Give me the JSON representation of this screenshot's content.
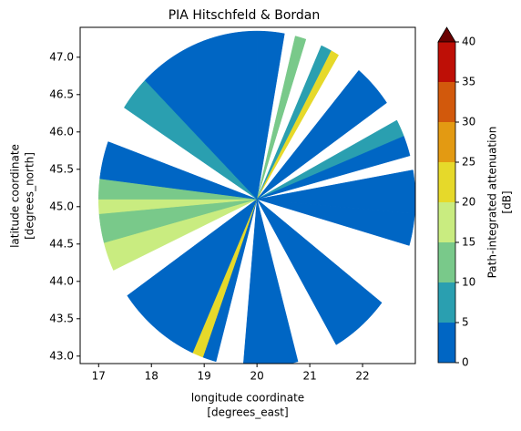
{
  "chart_data": {
    "type": "radar_sectors",
    "title": "PIA Hitschfeld & Bordan",
    "xlabel": [
      "longitude coordinate",
      "[degrees_east]"
    ],
    "ylabel": [
      "latitude coordinate",
      "[degrees_north]"
    ],
    "xlim": [
      16.65,
      23.0
    ],
    "ylim": [
      42.9,
      47.4
    ],
    "xticks": [
      17,
      18,
      19,
      20,
      21,
      22
    ],
    "yticks": [
      {
        "value": 43,
        "label": "43.0"
      },
      {
        "value": 43.5,
        "label": "43.5"
      },
      {
        "value": 44,
        "label": "44.0"
      },
      {
        "value": 44.5,
        "label": "44.5"
      },
      {
        "value": 45,
        "label": "45.0"
      },
      {
        "value": 45.5,
        "label": "45.5"
      },
      {
        "value": 46,
        "label": "46.0"
      },
      {
        "value": 46.5,
        "label": "46.5"
      },
      {
        "value": 47,
        "label": "47.0"
      }
    ],
    "center": [
      20.0,
      45.1
    ],
    "radius": [
      3.0,
      2.25
    ],
    "sectors": [
      {
        "from": 0,
        "to": 10,
        "value": 2
      },
      {
        "from": 14,
        "to": 18,
        "value": 12
      },
      {
        "from": 24,
        "to": 28,
        "value": 7
      },
      {
        "from": 28,
        "to": 31,
        "value": 22
      },
      {
        "from": 40,
        "to": 55,
        "value": 3
      },
      {
        "from": 62,
        "to": 68,
        "value": 8
      },
      {
        "from": 68,
        "to": 75,
        "value": 3
      },
      {
        "from": 80,
        "to": 95,
        "value": 3
      },
      {
        "from": 95,
        "to": 106,
        "value": 4
      },
      {
        "from": 128,
        "to": 150,
        "value": 3
      },
      {
        "from": 165,
        "to": 185,
        "value": 2
      },
      {
        "from": 195,
        "to": 200,
        "value": 3
      },
      {
        "from": 200,
        "to": 204,
        "value": 22
      },
      {
        "from": 204,
        "to": 235,
        "value": 3
      },
      {
        "from": 245,
        "to": 255,
        "value": 16
      },
      {
        "from": 255,
        "to": 265,
        "value": 12
      },
      {
        "from": 265,
        "to": 270,
        "value": 18
      },
      {
        "from": 270,
        "to": 277,
        "value": 10
      },
      {
        "from": 277,
        "to": 290,
        "value": 4
      },
      {
        "from": 303,
        "to": 315,
        "value": 9
      },
      {
        "from": 315,
        "to": 360,
        "value": 3
      }
    ],
    "colorbar": {
      "label": [
        "Path-integrated attenuation",
        "[dB]"
      ],
      "levels": [
        0,
        5,
        10,
        15,
        20,
        25,
        30,
        35,
        40
      ],
      "colors": [
        "#0066c4",
        "#2a9fb0",
        "#79c98a",
        "#c9ec80",
        "#e6d92a",
        "#e39a12",
        "#d2590c",
        "#be0f06"
      ],
      "over_color": "#6b0000"
    }
  }
}
